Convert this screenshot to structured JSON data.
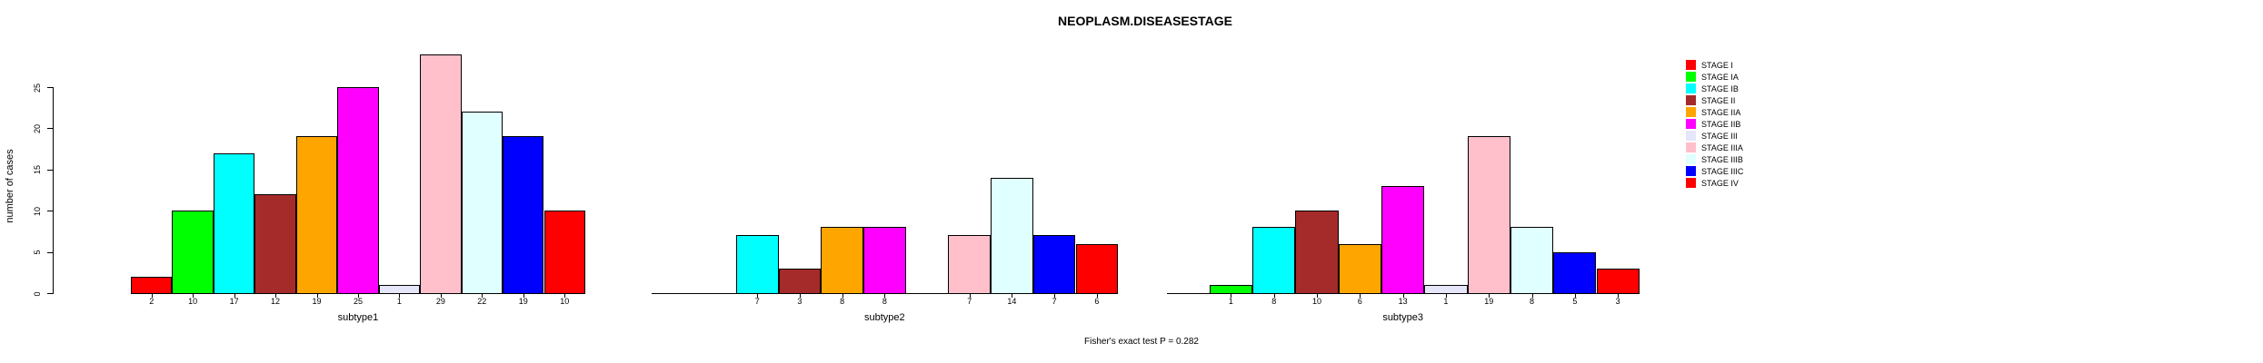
{
  "title": "NEOPLASM.DISEASESTAGE",
  "footer": "Fisher's exact test P = 0.282",
  "y_axis": {
    "label": "number of cases",
    "ticks": [
      0,
      5,
      10,
      15,
      20,
      25
    ]
  },
  "stages": [
    {
      "label": "STAGE I",
      "color": "#FF0000"
    },
    {
      "label": "STAGE IA",
      "color": "#00FF00"
    },
    {
      "label": "STAGE IB",
      "color": "#00FFFF"
    },
    {
      "label": "STAGE II",
      "color": "#A52A2A"
    },
    {
      "label": "STAGE IIA",
      "color": "#FFA500"
    },
    {
      "label": "STAGE IIB",
      "color": "#FF00FF"
    },
    {
      "label": "STAGE III",
      "color": "#E6E6FA"
    },
    {
      "label": "STAGE IIIA",
      "color": "#FFC0CB"
    },
    {
      "label": "STAGE IIIB",
      "color": "#E0FFFF"
    },
    {
      "label": "STAGE IIIC",
      "color": "#0000FF"
    },
    {
      "label": "STAGE IV",
      "color": "#FF0000"
    }
  ],
  "chart_data": {
    "type": "bar",
    "title": "NEOPLASM.DISEASESTAGE",
    "ylabel": "number of cases",
    "ylim": [
      0,
      25
    ],
    "grid": false,
    "legend_position": "right",
    "annotation": "Fisher's exact test P = 0.282",
    "categories": [
      "STAGE I",
      "STAGE IA",
      "STAGE IB",
      "STAGE II",
      "STAGE IIA",
      "STAGE IIB",
      "STAGE III",
      "STAGE IIIA",
      "STAGE IIIB",
      "STAGE IIIC",
      "STAGE IV"
    ],
    "series": [
      {
        "name": "subtype1",
        "values": [
          2,
          10,
          17,
          12,
          19,
          25,
          1,
          29,
          22,
          19,
          10
        ]
      },
      {
        "name": "subtype2",
        "values": [
          0,
          0,
          7,
          3,
          8,
          8,
          0,
          7,
          14,
          7,
          6
        ]
      },
      {
        "name": "subtype3",
        "values": [
          0,
          1,
          8,
          10,
          6,
          13,
          1,
          19,
          8,
          5,
          3
        ]
      }
    ]
  }
}
